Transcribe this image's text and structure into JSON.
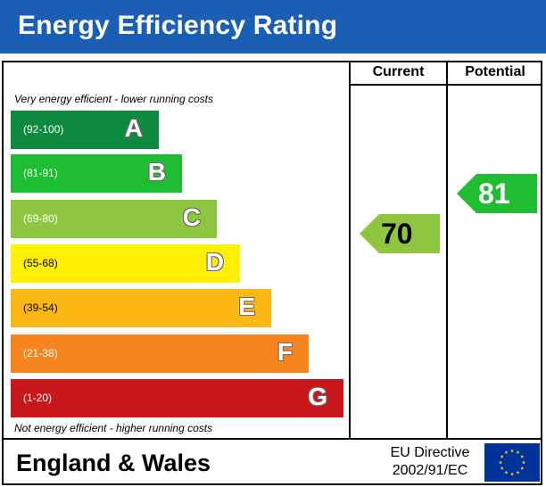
{
  "title": "Energy Efficiency Rating",
  "columns": {
    "current": "Current",
    "potential": "Potential"
  },
  "top_caption": "Very energy efficient - lower running costs",
  "bottom_caption": "Not energy efficient - higher running costs",
  "chart_data": {
    "type": "bar",
    "bands": [
      {
        "letter": "A",
        "range": "(92-100)",
        "color": "#0e8a3e"
      },
      {
        "letter": "B",
        "range": "(81-91)",
        "color": "#1ebd32"
      },
      {
        "letter": "C",
        "range": "(69-80)",
        "color": "#8ec63f"
      },
      {
        "letter": "D",
        "range": "(55-68)",
        "color": "#ffef00"
      },
      {
        "letter": "E",
        "range": "(39-54)",
        "color": "#fbb813"
      },
      {
        "letter": "F",
        "range": "(21-38)",
        "color": "#f6851f"
      },
      {
        "letter": "G",
        "range": "(1-20)",
        "color": "#c8181b"
      }
    ],
    "current": {
      "value": "70",
      "band": "C",
      "color": "#8ec63f"
    },
    "potential": {
      "value": "81",
      "band": "B",
      "color": "#1ebd32"
    }
  },
  "footer": {
    "country": "England & Wales",
    "directive_line1": "EU Directive",
    "directive_line2": "2002/91/EC"
  },
  "colors": {
    "header": "#1a5fb4",
    "eu_flag": "#003399",
    "eu_star": "#ffcc00"
  }
}
